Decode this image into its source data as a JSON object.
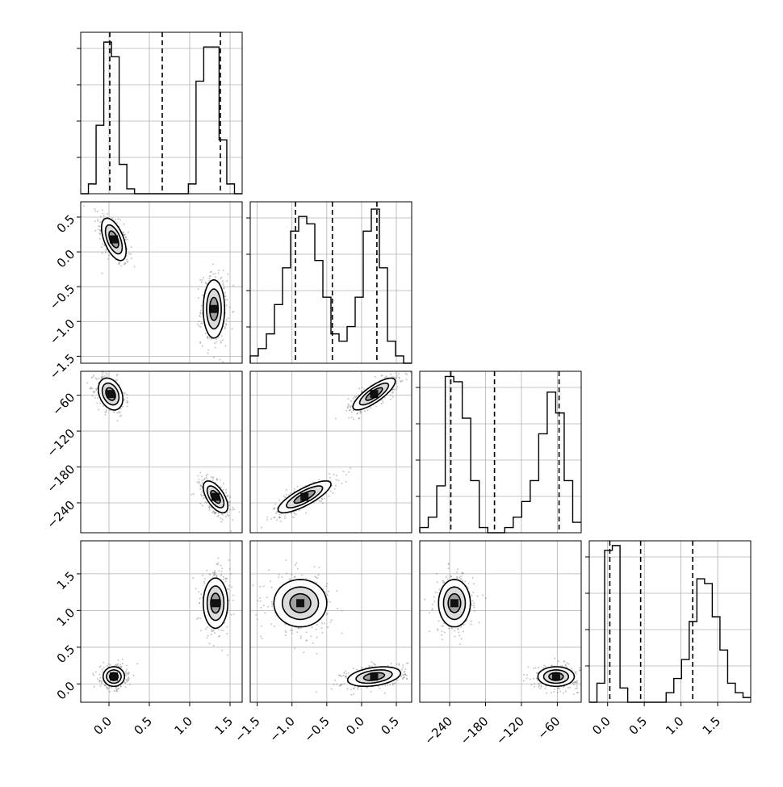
{
  "chart_data": {
    "type": "corner",
    "parameters": [
      {
        "range": [
          -0.35,
          1.65
        ],
        "ticks": [
          0.0,
          0.5,
          1.0,
          1.5
        ],
        "tick_labels": [
          "0.0",
          "0.5",
          "1.0",
          "1.5"
        ],
        "quantiles": [
          0.01,
          0.66,
          1.38
        ],
        "hist": [
          0,
          2,
          14,
          31,
          28,
          6,
          1,
          0,
          0,
          0,
          0,
          0,
          0,
          0,
          2,
          23,
          30,
          30,
          11,
          2,
          0
        ],
        "hist_ylim": [
          0,
          33
        ]
      },
      {
        "range": [
          -1.6,
          0.72
        ],
        "ticks": [
          -1.5,
          -1.0,
          -0.5,
          0.0,
          0.5
        ],
        "tick_labels": [
          "-1.5",
          "-1.0",
          "-0.5",
          "0.0",
          "0.5"
        ],
        "quantiles": [
          -0.95,
          -0.42,
          0.22
        ],
        "hist": [
          1,
          2,
          4,
          8,
          13,
          18,
          20,
          19,
          14,
          9,
          4,
          3,
          5,
          9,
          18,
          21,
          13,
          3,
          1,
          0
        ],
        "hist_ylim": [
          0,
          22
        ]
      },
      {
        "range": [
          -290,
          -20
        ],
        "ticks": [
          -240,
          -180,
          -120,
          -60
        ],
        "tick_labels": [
          "-240",
          "-180",
          "-120",
          "-60"
        ],
        "quantiles": [
          -238,
          -165,
          -57
        ],
        "hist": [
          1,
          3,
          9,
          30,
          29,
          22,
          10,
          1,
          0,
          0,
          1,
          3,
          6,
          10,
          19,
          27,
          23,
          10,
          2
        ],
        "hist_ylim": [
          0,
          31
        ]
      },
      {
        "range": [
          -0.25,
          1.95
        ],
        "ticks": [
          0.0,
          0.5,
          1.0,
          1.5
        ],
        "tick_labels": [
          "0.0",
          "0.5",
          "1.0",
          "1.5"
        ],
        "quantiles": [
          0.03,
          0.45,
          1.16
        ],
        "hist": [
          0,
          4,
          32,
          33,
          3,
          0,
          0,
          0,
          0,
          0,
          2,
          5,
          9,
          17,
          26,
          25,
          18,
          11,
          4,
          2,
          1
        ],
        "hist_ylim": [
          0,
          34
        ]
      }
    ],
    "blobs": [
      {
        "pair": [
          0,
          1
        ],
        "center": [
          0.06,
          0.18
        ],
        "sd": [
          0.08,
          0.16
        ],
        "corr": -0.55
      },
      {
        "pair": [
          0,
          1
        ],
        "center": [
          1.3,
          -0.82
        ],
        "sd": [
          0.07,
          0.22
        ],
        "corr": 0.0
      },
      {
        "pair": [
          0,
          2
        ],
        "center": [
          0.02,
          -58
        ],
        "sd": [
          0.08,
          14
        ],
        "corr": -0.3
      },
      {
        "pair": [
          0,
          2
        ],
        "center": [
          1.32,
          -230
        ],
        "sd": [
          0.08,
          14
        ],
        "corr": -0.6
      },
      {
        "pair": [
          1,
          2
        ],
        "center": [
          0.18,
          -58
        ],
        "sd": [
          0.16,
          14
        ],
        "corr": 0.8
      },
      {
        "pair": [
          1,
          2
        ],
        "center": [
          -0.82,
          -230
        ],
        "sd": [
          0.2,
          14
        ],
        "corr": 0.8
      },
      {
        "pair": [
          0,
          3
        ],
        "center": [
          0.06,
          0.1
        ],
        "sd": [
          0.07,
          0.07
        ],
        "corr": 0.0
      },
      {
        "pair": [
          0,
          3
        ],
        "center": [
          1.32,
          1.1
        ],
        "sd": [
          0.08,
          0.18
        ],
        "corr": 0.0
      },
      {
        "pair": [
          1,
          3
        ],
        "center": [
          -0.88,
          1.1
        ],
        "sd": [
          0.2,
          0.17
        ],
        "corr": 0.0
      },
      {
        "pair": [
          1,
          3
        ],
        "center": [
          0.18,
          0.1
        ],
        "sd": [
          0.2,
          0.07
        ],
        "corr": 0.35
      },
      {
        "pair": [
          2,
          3
        ],
        "center": [
          -232,
          1.1
        ],
        "sd": [
          14,
          0.17
        ],
        "corr": 0.0
      },
      {
        "pair": [
          2,
          3
        ],
        "center": [
          -62,
          0.1
        ],
        "sd": [
          16,
          0.07
        ],
        "corr": 0.0
      }
    ],
    "grid": true,
    "title": "",
    "colors": {
      "line": "#000000",
      "grid": "#b0b0b0",
      "scatter": "#7f7f7f"
    }
  }
}
